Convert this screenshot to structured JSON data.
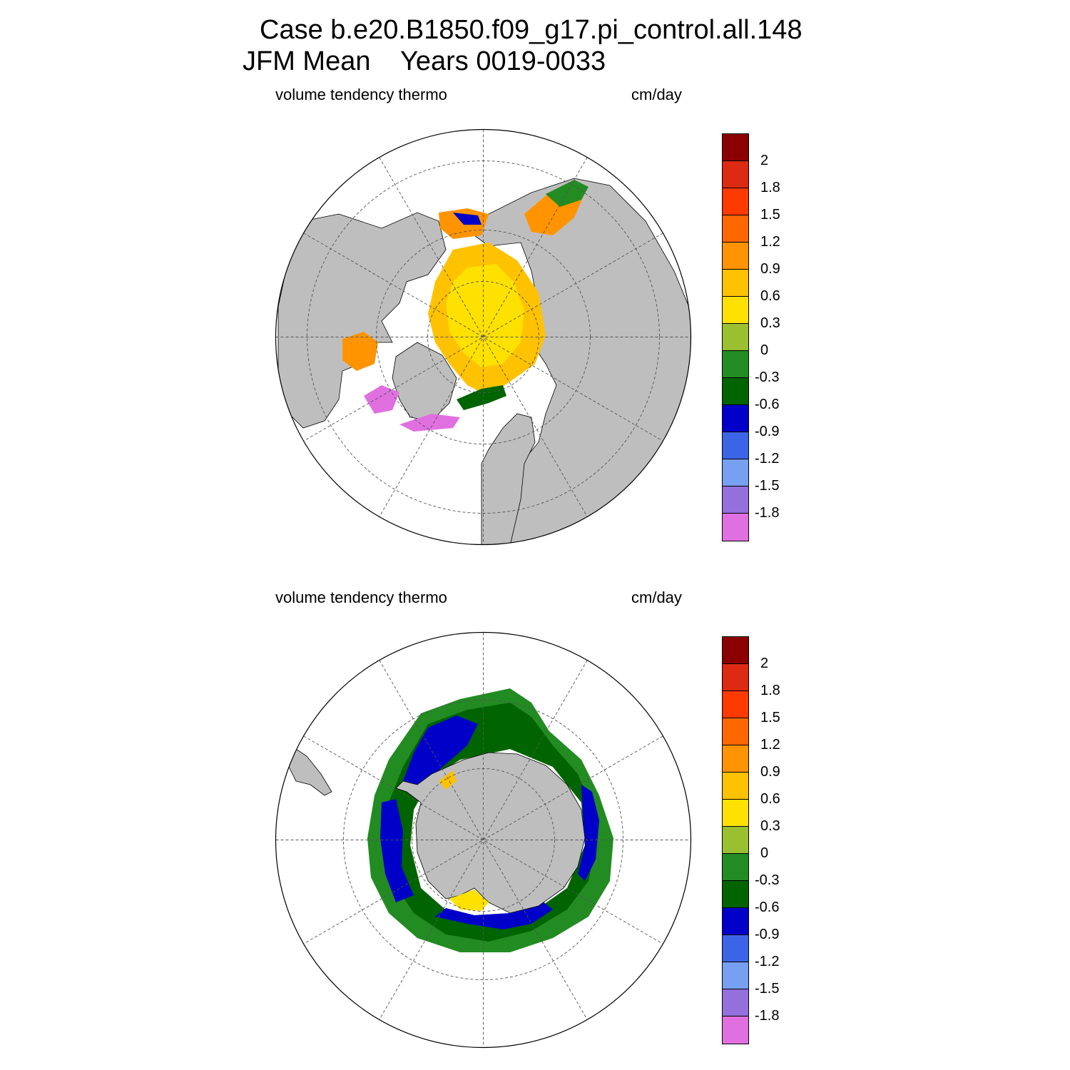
{
  "title": {
    "line1": "Case b.e20.B1850.f09_g17.pi_control.all.148",
    "line2": "JFM Mean    Years 0019-0033"
  },
  "panels": [
    {
      "id": "nh",
      "variable_label": "volume tendency thermo",
      "units_label": "cm/day"
    },
    {
      "id": "sh",
      "variable_label": "volume tendency thermo",
      "units_label": "cm/day"
    }
  ],
  "colorbar": {
    "tick_labels": [
      "2",
      "1.8",
      "1.5",
      "1.2",
      "0.9",
      "0.6",
      "0.3",
      "0",
      "-0.3",
      "-0.6",
      "-0.9",
      "-1.2",
      "-1.5",
      "-1.8"
    ],
    "colors": [
      "#8b0000",
      "#dd2a12",
      "#ff3a00",
      "#ff6800",
      "#ff9400",
      "#ffc200",
      "#ffe100",
      "#9ac032",
      "#228b22",
      "#006400",
      "#0000c8",
      "#3c64e6",
      "#78a0f0",
      "#9370db",
      "#e070e0"
    ]
  },
  "colors": {
    "land": "#bebebe",
    "ocean_no_ice": "#ffffff",
    "grid": "#555555"
  }
}
